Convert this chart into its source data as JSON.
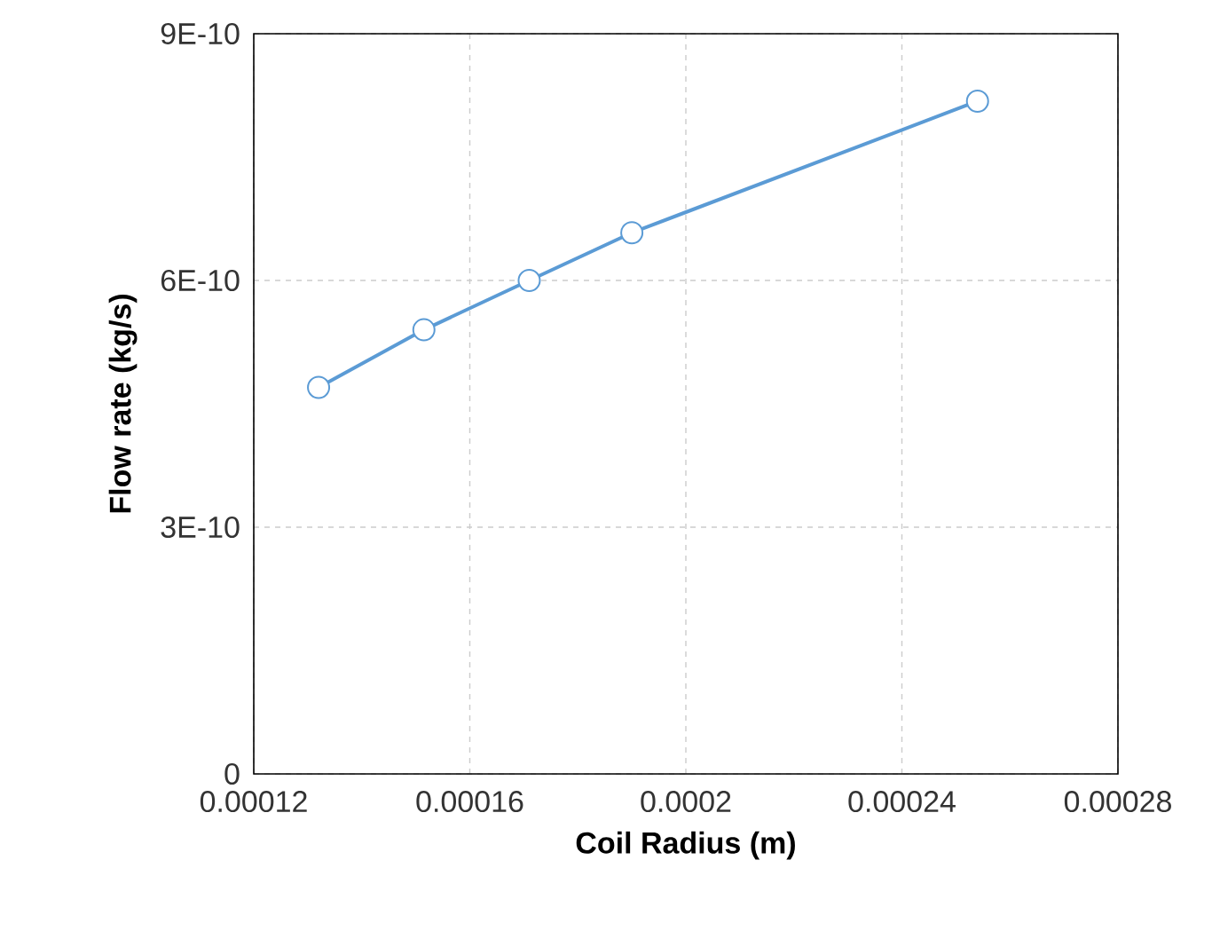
{
  "chart_data": {
    "type": "line",
    "xlabel": "Coil Radius (m)",
    "ylabel": "Flow rate (kg/s)",
    "x": [
      0.000132,
      0.0001515,
      0.000171,
      0.00019,
      0.000254
    ],
    "series": [
      {
        "color": "#5b9bd5",
        "values": [
          4.7e-10,
          5.4e-10,
          6e-10,
          6.58e-10,
          8.18e-10
        ]
      }
    ],
    "xlim": [
      0.00012,
      0.00028
    ],
    "ylim": [
      0,
      9e-10
    ],
    "xticks": [
      {
        "value": 0.00012,
        "label": "0.00012"
      },
      {
        "value": 0.00016,
        "label": "0.00016"
      },
      {
        "value": 0.0002,
        "label": "0.0002"
      },
      {
        "value": 0.00024,
        "label": "0.00024"
      },
      {
        "value": 0.00028,
        "label": "0.00028"
      }
    ],
    "yticks": [
      {
        "value": 0,
        "label": "0"
      },
      {
        "value": 3e-10,
        "label": "3E-10"
      },
      {
        "value": 6e-10,
        "label": "6E-10"
      },
      {
        "value": 9e-10,
        "label": "9E-10"
      }
    ],
    "grid": true,
    "marker": "circle",
    "line_style": "solid"
  }
}
